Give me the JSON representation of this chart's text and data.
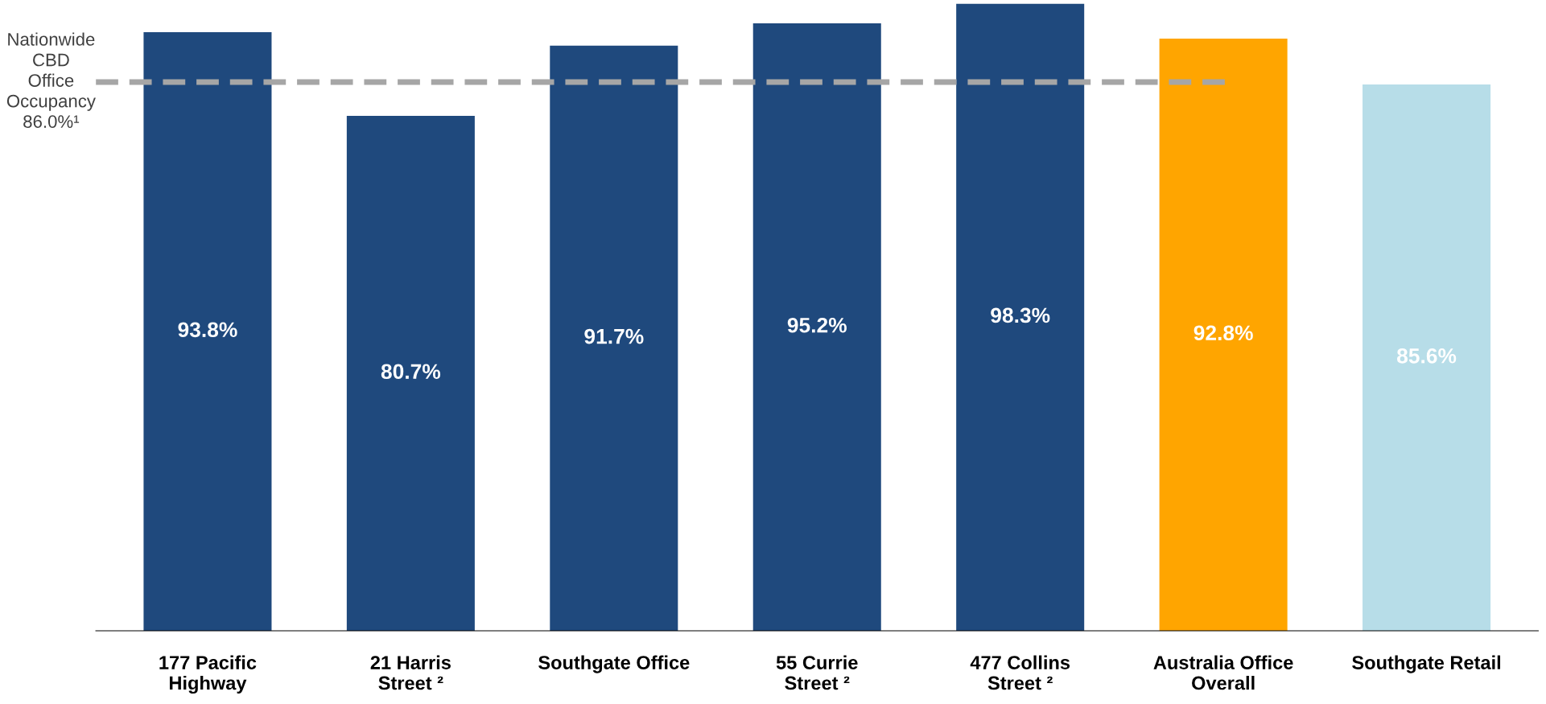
{
  "chart_data": {
    "type": "bar",
    "categories": [
      "177 Pacific\nHighway",
      "21 Harris\nStreet ²",
      "Southgate Office",
      "55 Currie\nStreet ²",
      "477 Collins\nStreet ²",
      "Australia Office\nOverall",
      "Southgate Retail"
    ],
    "values": [
      93.8,
      80.7,
      91.7,
      95.2,
      98.3,
      92.8,
      85.6
    ],
    "value_labels": [
      "93.8%",
      "80.7%",
      "91.7%",
      "95.2%",
      "98.3%",
      "92.8%",
      "85.6%"
    ],
    "colors": [
      "#1f497d",
      "#1f497d",
      "#1f497d",
      "#1f497d",
      "#1f497d",
      "#ffa500",
      "#b7dde8"
    ],
    "ref_lines": [
      {
        "axis": "y",
        "value": 86.0,
        "label": "Nationwide\nCBD\nOffice\nOccupancy\n86.0%¹",
        "color": "#a6a6a6",
        "line_style": "dashed"
      }
    ],
    "grid": false,
    "legend": false
  }
}
